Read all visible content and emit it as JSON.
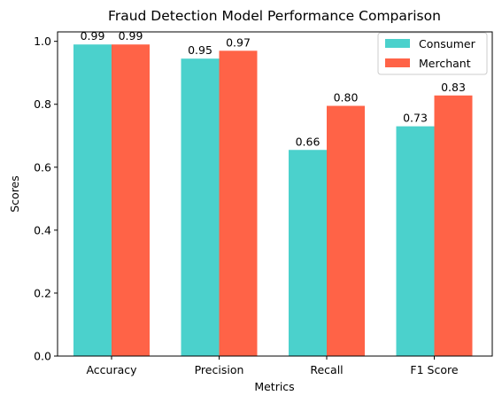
{
  "chart_data": {
    "type": "bar",
    "title": "Fraud Detection Model Performance Comparison",
    "xlabel": "Metrics",
    "ylabel": "Scores",
    "categories": [
      "Accuracy",
      "Precision",
      "Recall",
      "F1 Score"
    ],
    "series": [
      {
        "name": "Consumer",
        "color": "#4BD1CC",
        "values": [
          0.99,
          0.945,
          0.655,
          0.73
        ],
        "labels": [
          "0.99",
          "0.95",
          "0.66",
          "0.73"
        ]
      },
      {
        "name": "Merchant",
        "color": "#FF6347",
        "values": [
          0.99,
          0.97,
          0.795,
          0.828
        ],
        "labels": [
          "0.99",
          "0.97",
          "0.80",
          "0.83"
        ]
      }
    ],
    "ylim": [
      0,
      1.03
    ],
    "yticks": [
      0.0,
      0.2,
      0.4,
      0.6,
      0.8,
      1.0
    ],
    "ytick_labels": [
      "0.0",
      "0.2",
      "0.4",
      "0.6",
      "0.8",
      "1.0"
    ],
    "grid": false,
    "legend_position": "top-right"
  }
}
